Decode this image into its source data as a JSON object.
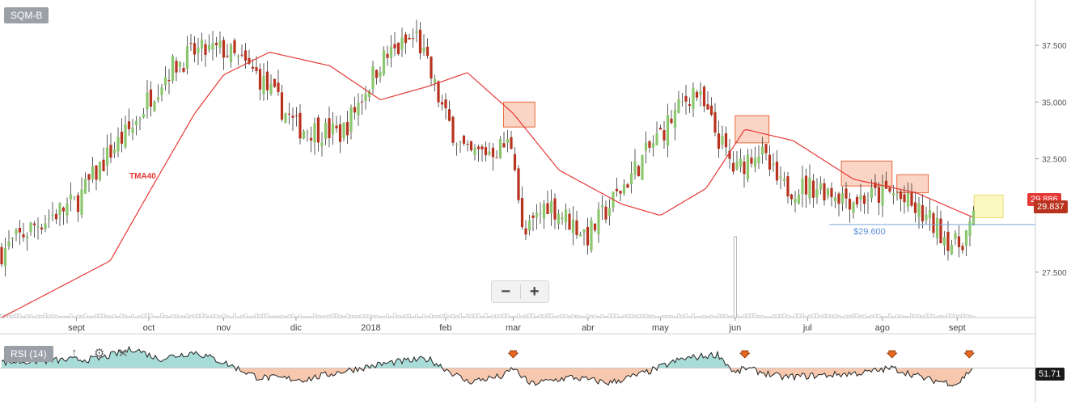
{
  "symbol": "SQM-B",
  "indicators": {
    "rsi_label": "RSI (14)",
    "rsi_value": "51.71",
    "tma_label": "TMA40"
  },
  "price_labels": {
    "tma_value": "29.886",
    "last": "29.837",
    "support": "$29.600"
  },
  "controls": {
    "zoom_out": "−",
    "zoom_in": "+",
    "collapse": "↑",
    "settings": "⚙",
    "close": "✕"
  },
  "colors": {
    "up": "#8bc76f",
    "down": "#b8321e",
    "tma": "#e53935",
    "rsi_above": "#a8dcd8",
    "rsi_below": "#f7c8ad",
    "support": "#7fa7db",
    "zone": "#f4a27e",
    "zone_last": "#fbf5a8",
    "last_label": "#b8321e",
    "tma_label": "#e53935",
    "rsi_label_bg": "#1a1a1a"
  },
  "chart_data": {
    "type": "candlestick",
    "yaxis_ticks": [
      "37.500",
      "35.000",
      "32.500",
      "27.500"
    ],
    "xaxis_labels": [
      "sept",
      "oct",
      "nov",
      "dic",
      "2018",
      "feb",
      "mar",
      "abr",
      "may",
      "jun",
      "jul",
      "ago",
      "sept"
    ],
    "ylim": [
      25.5,
      39.5
    ],
    "close_points": [
      {
        "x": "2017-08-01",
        "y": 28.4
      },
      {
        "x": "2017-08-15",
        "y": 29.6
      },
      {
        "x": "2017-09-01",
        "y": 30.6
      },
      {
        "x": "2017-09-15",
        "y": 32.8
      },
      {
        "x": "2017-09-25",
        "y": 34.0
      },
      {
        "x": "2017-10-01",
        "y": 35.2
      },
      {
        "x": "2017-10-10",
        "y": 36.5
      },
      {
        "x": "2017-10-20",
        "y": 37.2
      },
      {
        "x": "2017-11-01",
        "y": 37.3
      },
      {
        "x": "2017-11-15",
        "y": 36.2
      },
      {
        "x": "2017-12-01",
        "y": 33.9
      },
      {
        "x": "2017-12-20",
        "y": 33.6
      },
      {
        "x": "2018-01-05",
        "y": 36.8
      },
      {
        "x": "2018-01-20",
        "y": 37.9
      },
      {
        "x": "2018-02-01",
        "y": 34.3
      },
      {
        "x": "2018-02-10",
        "y": 32.6
      },
      {
        "x": "2018-02-20",
        "y": 32.9
      },
      {
        "x": "2018-03-01",
        "y": 33.2
      },
      {
        "x": "2018-03-05",
        "y": 28.9
      },
      {
        "x": "2018-03-15",
        "y": 30.6
      },
      {
        "x": "2018-04-01",
        "y": 29.1
      },
      {
        "x": "2018-04-15",
        "y": 31.2
      },
      {
        "x": "2018-05-01",
        "y": 33.6
      },
      {
        "x": "2018-05-15",
        "y": 35.6
      },
      {
        "x": "2018-06-01",
        "y": 31.9
      },
      {
        "x": "2018-06-10",
        "y": 33.0
      },
      {
        "x": "2018-06-20",
        "y": 31.2
      },
      {
        "x": "2018-07-05",
        "y": 31.3
      },
      {
        "x": "2018-07-20",
        "y": 30.7
      },
      {
        "x": "2018-08-05",
        "y": 31.0
      },
      {
        "x": "2018-08-20",
        "y": 29.8
      },
      {
        "x": "2018-09-01",
        "y": 28.6
      },
      {
        "x": "2018-09-08",
        "y": 29.8
      }
    ],
    "tma_points": [
      {
        "x": "2017-08-01",
        "y": 25.5
      },
      {
        "x": "2017-09-15",
        "y": 28.0
      },
      {
        "x": "2017-10-01",
        "y": 31.0
      },
      {
        "x": "2017-10-20",
        "y": 34.5
      },
      {
        "x": "2017-11-01",
        "y": 36.2
      },
      {
        "x": "2017-11-20",
        "y": 37.2
      },
      {
        "x": "2017-12-15",
        "y": 36.6
      },
      {
        "x": "2018-01-05",
        "y": 35.1
      },
      {
        "x": "2018-01-25",
        "y": 35.7
      },
      {
        "x": "2018-02-10",
        "y": 36.3
      },
      {
        "x": "2018-03-01",
        "y": 34.5
      },
      {
        "x": "2018-03-20",
        "y": 32.0
      },
      {
        "x": "2018-04-15",
        "y": 30.5
      },
      {
        "x": "2018-05-01",
        "y": 30.0
      },
      {
        "x": "2018-05-20",
        "y": 31.2
      },
      {
        "x": "2018-06-05",
        "y": 33.8
      },
      {
        "x": "2018-06-25",
        "y": 33.3
      },
      {
        "x": "2018-07-20",
        "y": 31.6
      },
      {
        "x": "2018-08-15",
        "y": 31.0
      },
      {
        "x": "2018-09-08",
        "y": 29.9
      }
    ],
    "support_level": 29.6,
    "rsi_level": 50,
    "rsi_points": [
      {
        "x": "2017-08-01",
        "y": 55
      },
      {
        "x": "2017-09-10",
        "y": 58
      },
      {
        "x": "2017-09-25",
        "y": 67
      },
      {
        "x": "2017-10-05",
        "y": 58
      },
      {
        "x": "2017-10-20",
        "y": 64
      },
      {
        "x": "2017-11-01",
        "y": 55
      },
      {
        "x": "2017-11-15",
        "y": 42
      },
      {
        "x": "2017-12-05",
        "y": 40
      },
      {
        "x": "2017-12-20",
        "y": 47
      },
      {
        "x": "2018-01-10",
        "y": 55
      },
      {
        "x": "2018-01-25",
        "y": 58
      },
      {
        "x": "2018-02-10",
        "y": 38
      },
      {
        "x": "2018-02-25",
        "y": 43
      },
      {
        "x": "2018-03-01",
        "y": 50
      },
      {
        "x": "2018-03-08",
        "y": 36
      },
      {
        "x": "2018-03-25",
        "y": 42
      },
      {
        "x": "2018-04-10",
        "y": 37
      },
      {
        "x": "2018-04-25",
        "y": 46
      },
      {
        "x": "2018-05-10",
        "y": 58
      },
      {
        "x": "2018-05-25",
        "y": 62
      },
      {
        "x": "2018-06-01",
        "y": 45
      },
      {
        "x": "2018-06-05",
        "y": 50
      },
      {
        "x": "2018-06-20",
        "y": 42
      },
      {
        "x": "2018-07-10",
        "y": 44
      },
      {
        "x": "2018-07-25",
        "y": 46
      },
      {
        "x": "2018-08-05",
        "y": 50
      },
      {
        "x": "2018-08-20",
        "y": 40
      },
      {
        "x": "2018-09-01",
        "y": 36
      },
      {
        "x": "2018-09-08",
        "y": 51.71
      }
    ],
    "signal_markers": [
      "2018-03-01",
      "2018-06-05",
      "2018-08-05",
      "2018-09-06"
    ],
    "highlight_zones": [
      {
        "from": "2018-02-25",
        "to": "2018-03-10",
        "low": 33.9,
        "high": 35.0
      },
      {
        "from": "2018-06-01",
        "to": "2018-06-15",
        "low": 33.2,
        "high": 34.4
      },
      {
        "from": "2018-07-15",
        "to": "2018-08-05",
        "low": 31.3,
        "high": 32.4
      },
      {
        "from": "2018-08-07",
        "to": "2018-08-20",
        "low": 31.0,
        "high": 31.8
      },
      {
        "from": "2018-09-08",
        "to": "2018-09-20",
        "low": 29.9,
        "high": 30.9
      }
    ],
    "volume_spike": "2018-06-01"
  }
}
